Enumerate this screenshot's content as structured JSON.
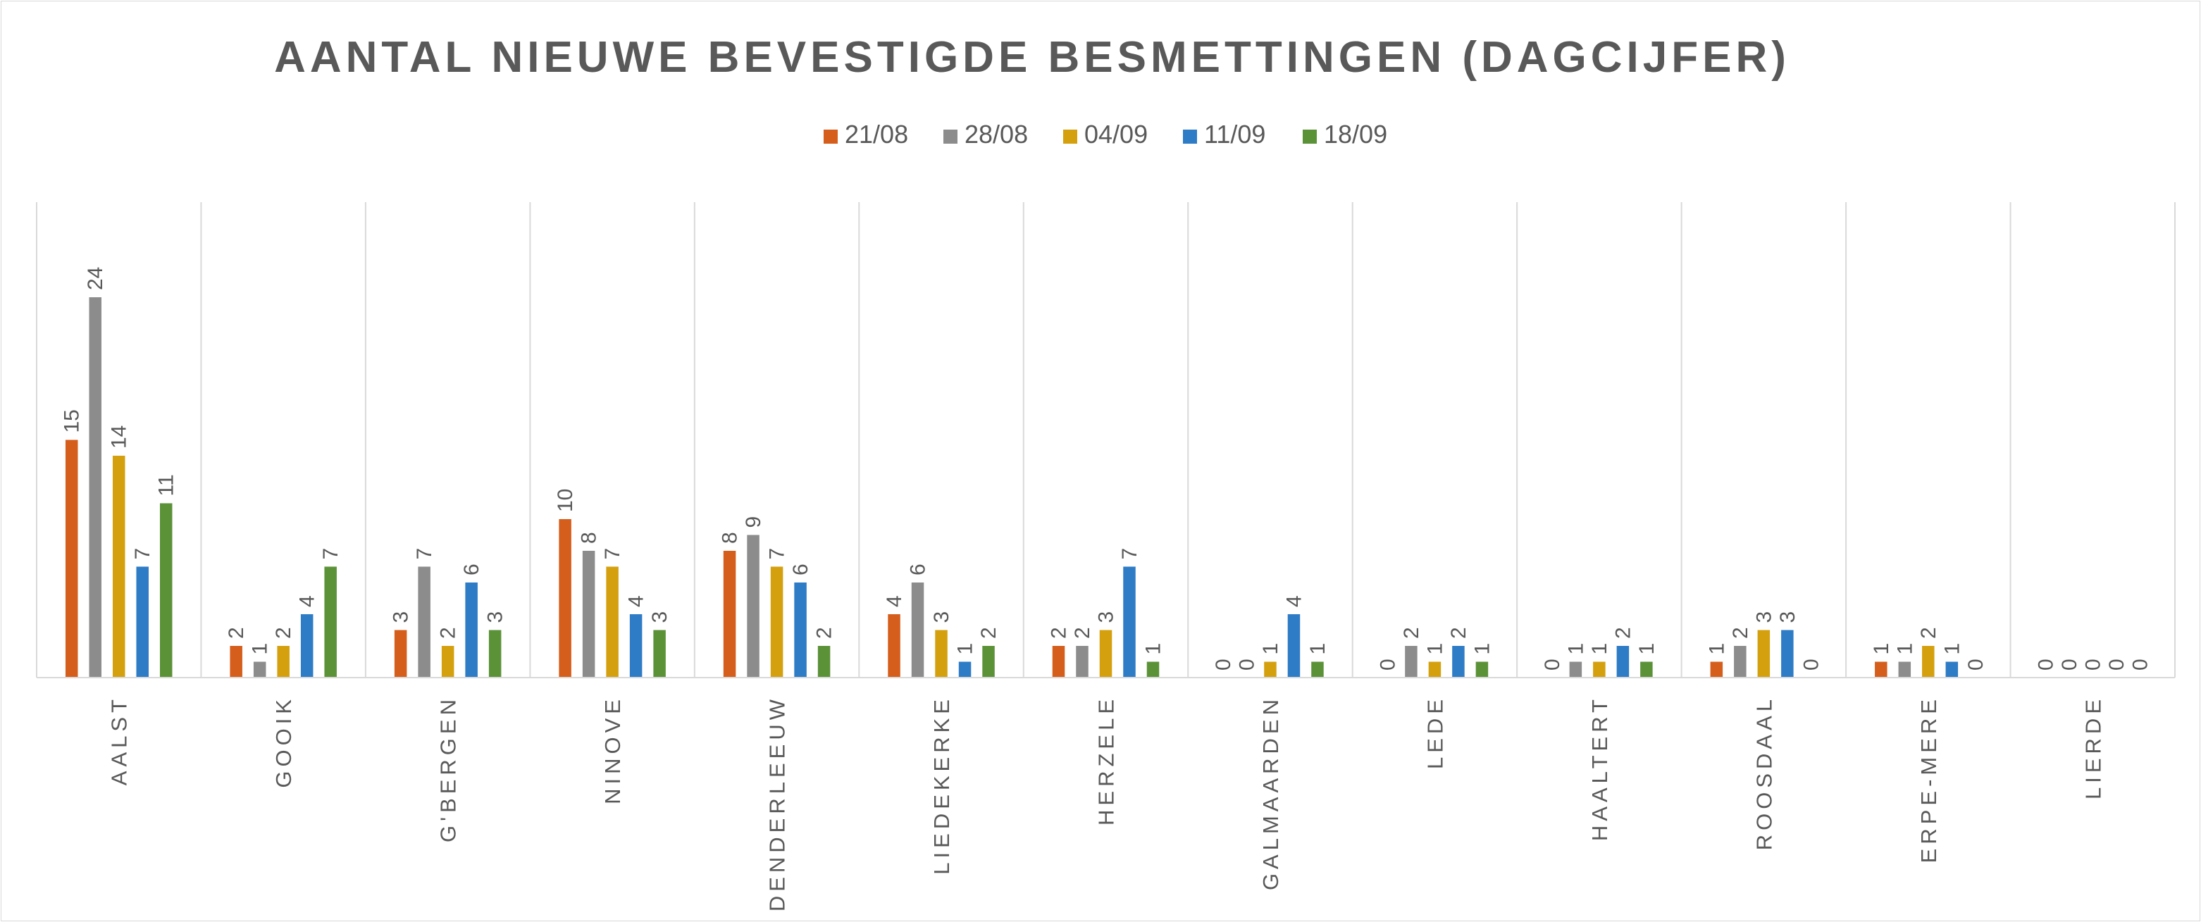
{
  "chart_data": {
    "type": "bar",
    "title": "AANTAL NIEUWE BEVESTIGDE BESMETTINGEN (DAGCIJFER)",
    "xlabel": "",
    "ylabel": "",
    "ylim": [
      0,
      30
    ],
    "grid": false,
    "legend_position": "top",
    "categories": [
      "AALST",
      "GOOIK",
      "G'BERGEN",
      "NINOVE",
      "DENDERLEEUW",
      "LIEDEKERKE",
      "HERZELE",
      "GALMAARDEN",
      "LEDE",
      "HAALTERT",
      "ROOSDAAL",
      "ERPE-MERE",
      "LIERDE"
    ],
    "series": [
      {
        "name": "21/08",
        "color": "#D55E1C",
        "values": [
          15,
          2,
          3,
          10,
          8,
          4,
          2,
          0,
          0,
          0,
          1,
          1,
          0
        ]
      },
      {
        "name": "28/08",
        "color": "#8C8C8C",
        "values": [
          24,
          1,
          7,
          8,
          9,
          6,
          2,
          0,
          2,
          1,
          2,
          1,
          0
        ]
      },
      {
        "name": "04/09",
        "color": "#D4A00E",
        "values": [
          14,
          2,
          2,
          7,
          7,
          3,
          3,
          1,
          1,
          1,
          3,
          2,
          0
        ]
      },
      {
        "name": "11/09",
        "color": "#2E7BC6",
        "values": [
          7,
          4,
          6,
          4,
          6,
          1,
          7,
          4,
          2,
          2,
          3,
          1,
          0
        ]
      },
      {
        "name": "18/09",
        "color": "#5B9238",
        "values": [
          11,
          7,
          3,
          3,
          2,
          2,
          1,
          1,
          1,
          1,
          0,
          0,
          0
        ]
      }
    ]
  }
}
